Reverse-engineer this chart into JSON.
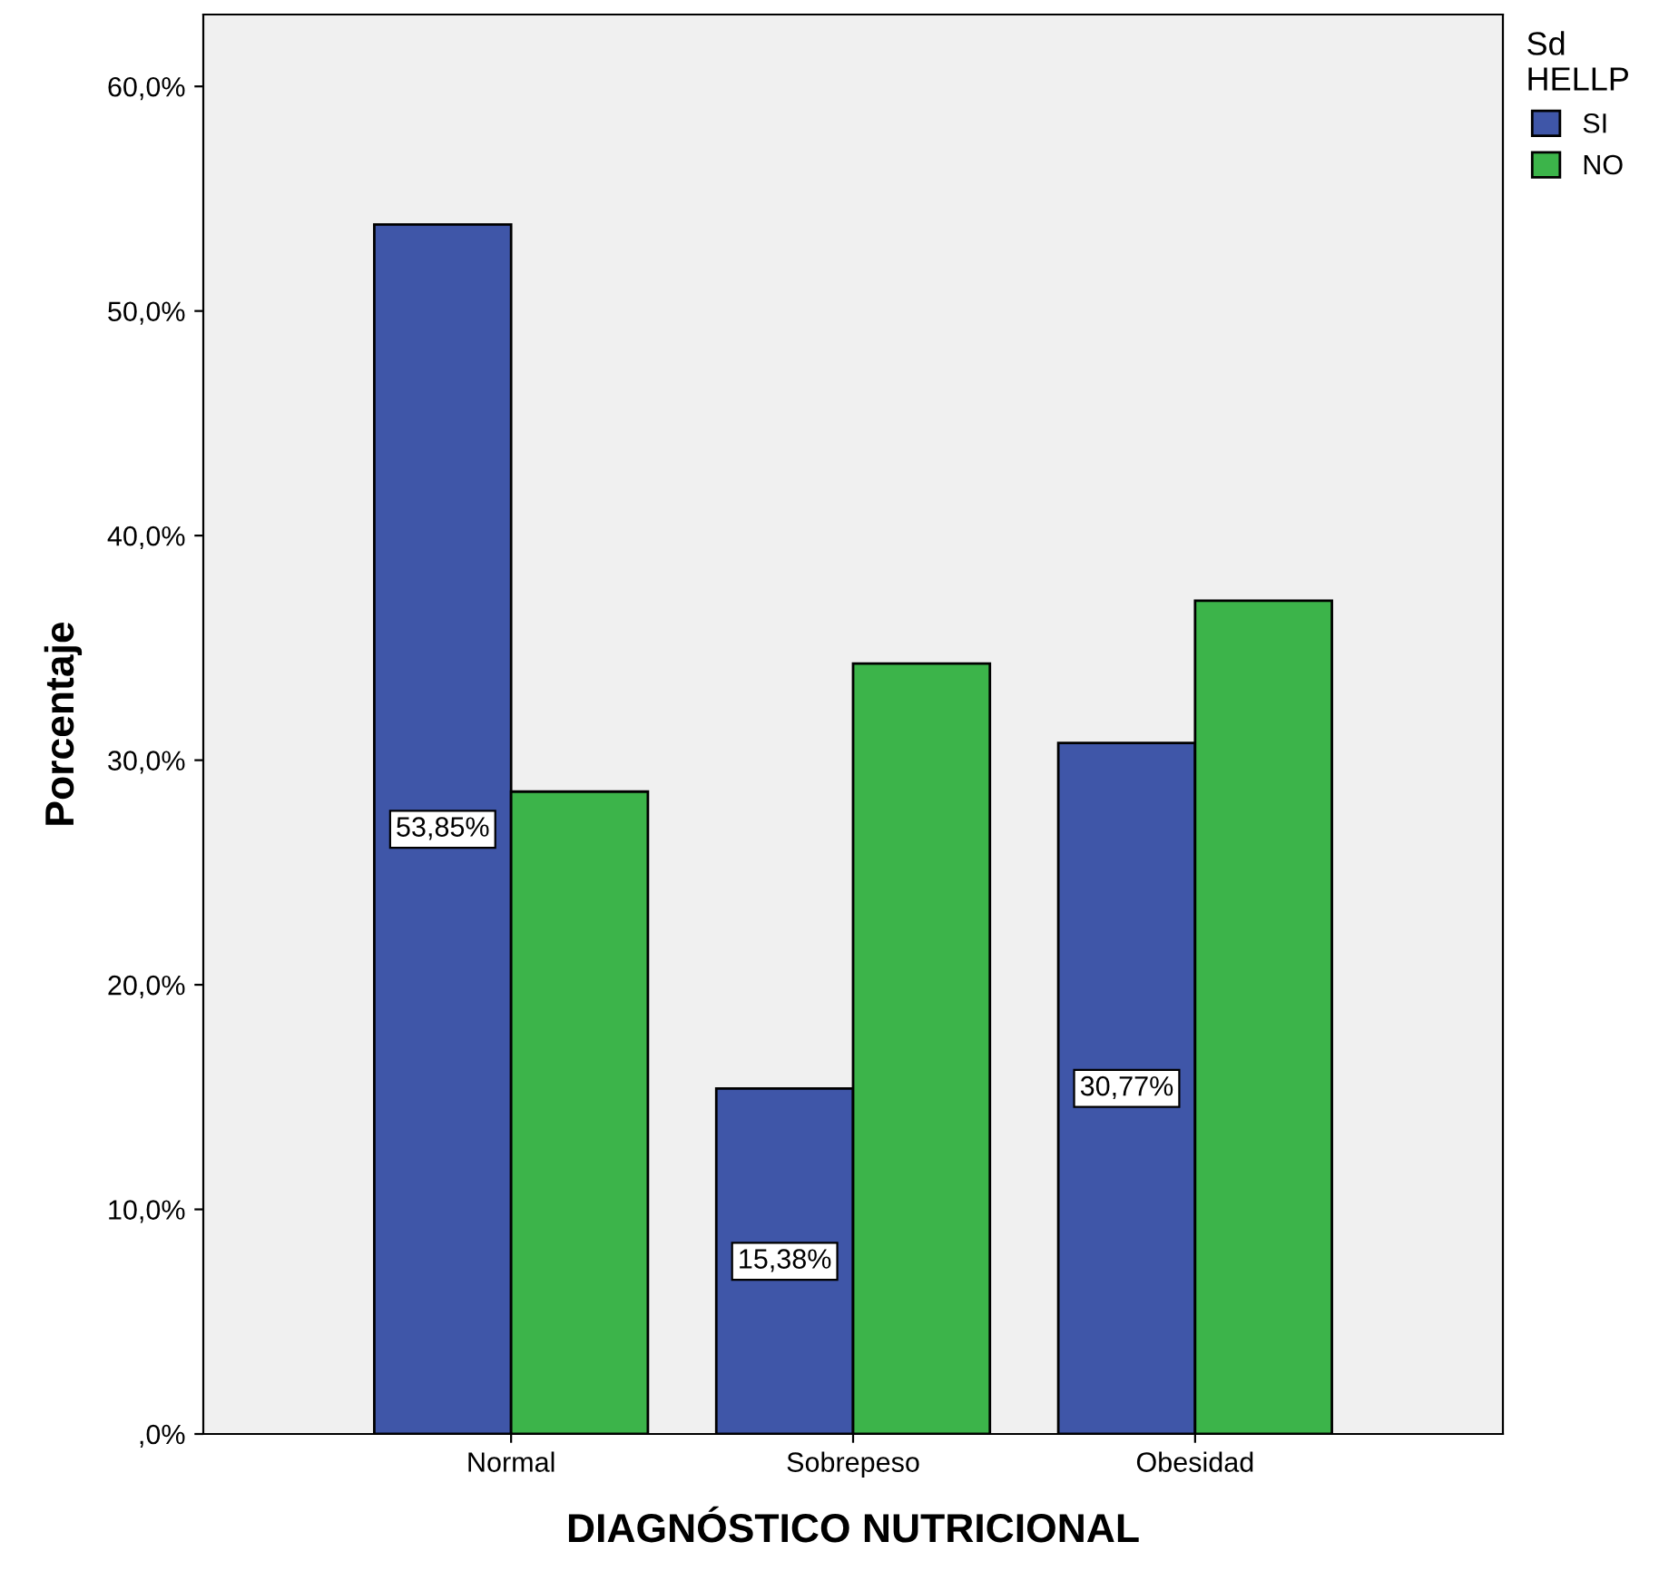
{
  "chart_data": {
    "type": "bar",
    "xlabel": "DIAGNÓSTICO NUTRICIONAL",
    "ylabel": "Porcentaje",
    "legend_title": "Sd\nHELLP",
    "categories": [
      "Normal",
      "Sobrepeso",
      "Obesidad"
    ],
    "series": [
      {
        "name": "SI",
        "color": "#3f56a8",
        "values": [
          53.85,
          15.38,
          30.77
        ],
        "value_labels": [
          "53,85%",
          "15,38%",
          "30,77%"
        ]
      },
      {
        "name": "NO",
        "color": "#3cb44a",
        "values": [
          28.6,
          34.3,
          37.1
        ]
      }
    ],
    "ylim": [
      0,
      63.2
    ],
    "yticks": [
      {
        "value": 0,
        "label": ",0%"
      },
      {
        "value": 10,
        "label": "10,0%"
      },
      {
        "value": 20,
        "label": "20,0%"
      },
      {
        "value": 30,
        "label": "30,0%"
      },
      {
        "value": 40,
        "label": "40,0%"
      },
      {
        "value": 50,
        "label": "50,0%"
      },
      {
        "value": 60,
        "label": "60,0%"
      }
    ],
    "grid": false,
    "legend": "top right"
  }
}
